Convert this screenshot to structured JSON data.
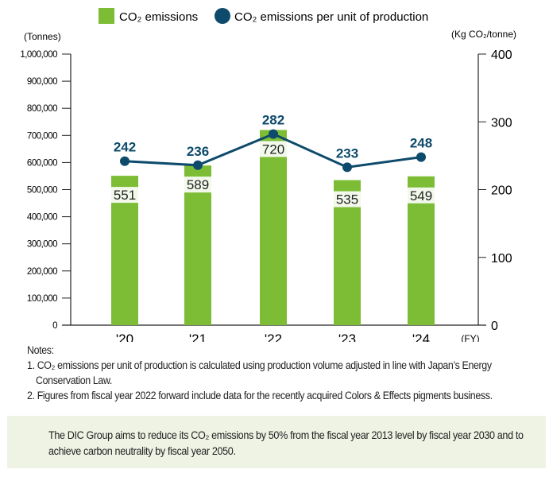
{
  "chart_data": {
    "type": "bar+line",
    "categories": [
      "'20",
      "'21",
      "'22",
      "'23",
      "'24"
    ],
    "series": [
      {
        "name": "CO₂ emissions",
        "type": "bar",
        "axis": "left",
        "values": [
          551,
          589,
          720,
          535,
          549
        ],
        "value_labels": [
          "551",
          "589",
          "720",
          "535",
          "549"
        ],
        "unit": "thousand tonnes",
        "color": "#7cbd35"
      },
      {
        "name": "CO₂ emissions per unit of production",
        "type": "line",
        "axis": "right",
        "values": [
          242,
          236,
          282,
          233,
          248
        ],
        "value_labels": [
          "242",
          "236",
          "282",
          "233",
          "248"
        ],
        "color": "#0d4a6b"
      }
    ],
    "left_axis": {
      "label": "(Tonnes)",
      "ylim": [
        0,
        1000000
      ],
      "ticks": [
        "0",
        "100,000",
        "200,000",
        "300,000",
        "400,000",
        "500,000",
        "600,000",
        "700,000",
        "800,000",
        "900,000",
        "1,000,000"
      ]
    },
    "right_axis": {
      "label": "(Kg CO₂/tonne)",
      "ylim": [
        0,
        400
      ],
      "ticks": [
        "0",
        "100",
        "200",
        "300",
        "400"
      ]
    },
    "x_unit": "(FY)",
    "legend_placement": "top-center",
    "grid": false
  },
  "notes": {
    "title": "Notes:",
    "items": [
      "1. CO₂ emissions per unit of production is calculated using production volume adjusted in line with Japan’s Energy",
      "Conservation Law.",
      "2. Figures from fiscal year 2022 forward include data for the recently acquired Colors & Effects pigments business."
    ]
  },
  "callout": "The DIC Group aims to reduce its CO₂ emissions by 50% from the fiscal year 2013 level by fiscal year 2030 and to achieve carbon neutrality by fiscal year 2050."
}
